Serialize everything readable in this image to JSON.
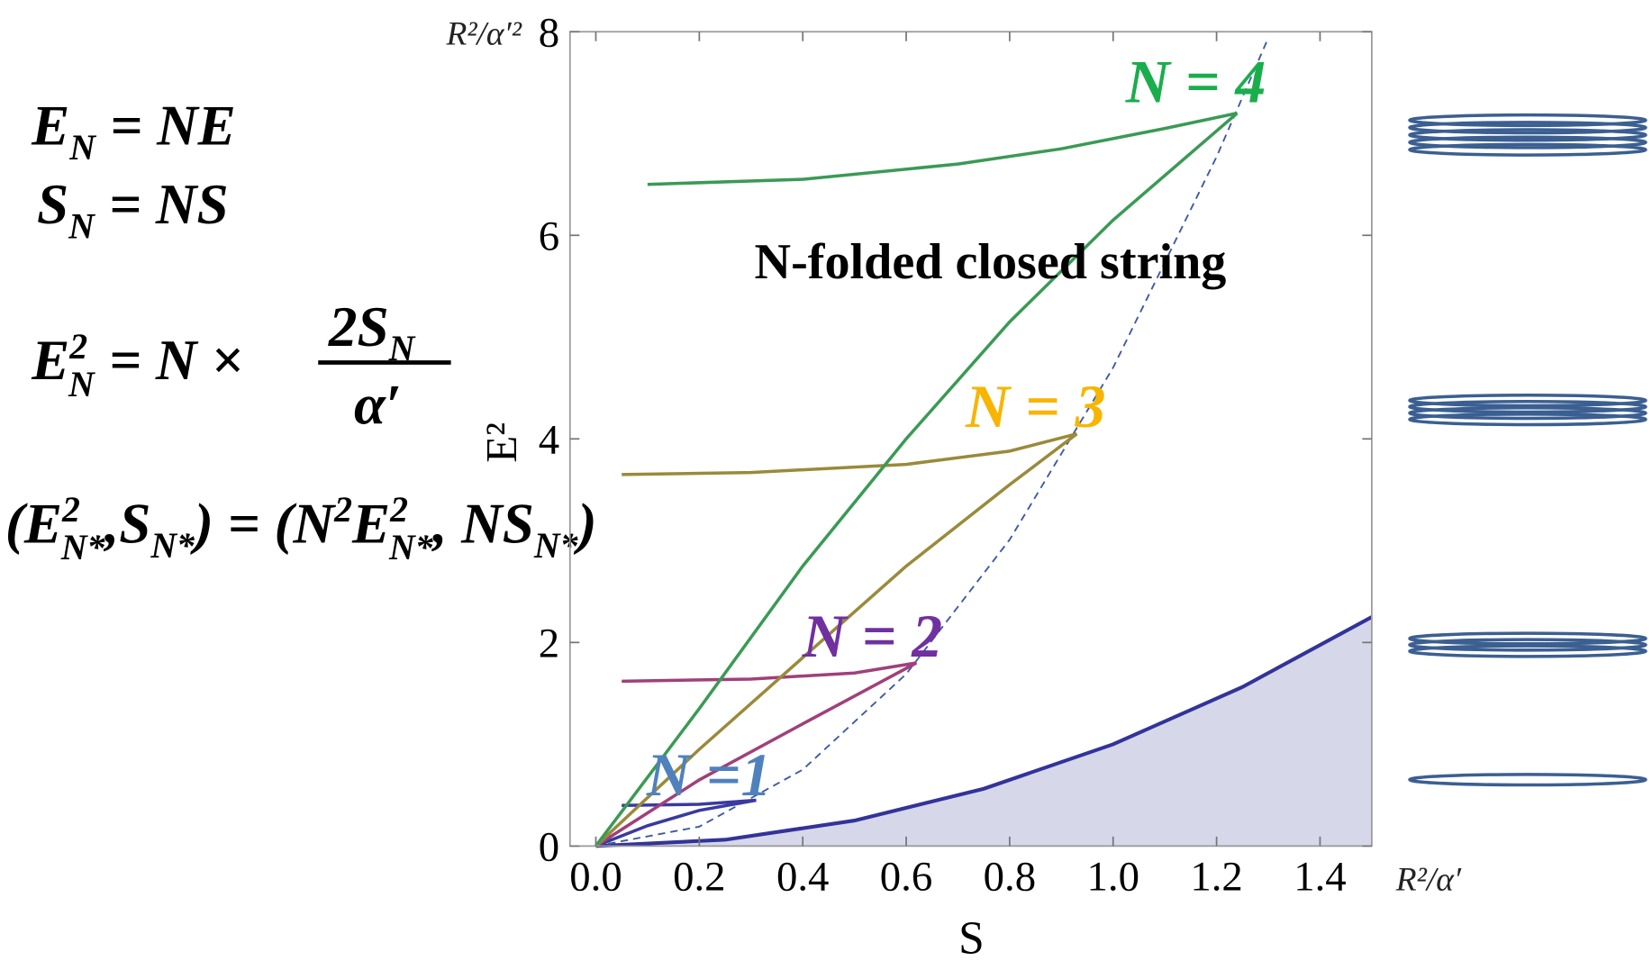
{
  "chart_data": {
    "type": "line",
    "xlim": [
      -0.05,
      1.5
    ],
    "ylim": [
      0,
      8
    ],
    "xticks": [
      {
        "value": 0,
        "label": "0.0"
      },
      0.2,
      0.4,
      0.6,
      0.8,
      {
        "value": 1,
        "label": "1.0"
      },
      1.2,
      1.4
    ],
    "yticks": [
      0,
      2,
      4,
      6,
      8
    ],
    "x_label": "S",
    "y_label": "E²",
    "x_unit": "R²/α′",
    "y_unit": "R²/α′²",
    "series": [
      {
        "style": "area",
        "color": "#33339a",
        "fill": "#d6d8ea",
        "x": [
          0,
          0.25,
          0.5,
          0.75,
          1.0,
          1.25,
          1.5
        ],
        "values": [
          0,
          0.0625,
          0.25,
          0.5625,
          1,
          1.5625,
          2.25
        ]
      },
      {
        "style": "dashed",
        "color": "#3c5aa0",
        "x": [
          0,
          0.2,
          0.4,
          0.6,
          0.8,
          1.0,
          1.2,
          1.3
        ],
        "values": [
          0,
          0.19,
          0.75,
          1.69,
          3.01,
          4.7,
          6.77,
          7.94
        ]
      },
      {
        "style": "solid",
        "color": "#3a3aa0",
        "x": [
          0.05,
          0.2,
          0.31
        ],
        "values": [
          0.4,
          0.41,
          0.45
        ]
      },
      {
        "style": "solid",
        "color": "#3a3aa0",
        "x": [
          0,
          0.1,
          0.2,
          0.31
        ],
        "values": [
          0,
          0.2,
          0.35,
          0.45
        ]
      },
      {
        "style": "solid",
        "color": "#a0407a",
        "x": [
          0.05,
          0.3,
          0.5,
          0.62
        ],
        "values": [
          1.62,
          1.64,
          1.7,
          1.8
        ]
      },
      {
        "style": "solid",
        "color": "#a0407a",
        "x": [
          0,
          0.2,
          0.4,
          0.62
        ],
        "values": [
          0,
          0.65,
          1.2,
          1.8
        ]
      },
      {
        "style": "solid",
        "color": "#9a8a3a",
        "x": [
          0.05,
          0.3,
          0.6,
          0.8,
          0.93
        ],
        "values": [
          3.65,
          3.67,
          3.75,
          3.88,
          4.05
        ]
      },
      {
        "style": "solid",
        "color": "#9a8a3a",
        "x": [
          0,
          0.2,
          0.4,
          0.6,
          0.8,
          0.93
        ],
        "values": [
          0,
          0.95,
          1.85,
          2.75,
          3.55,
          4.05
        ]
      },
      {
        "style": "solid",
        "color": "#3a9a55",
        "x": [
          0.1,
          0.4,
          0.7,
          0.9,
          1.1,
          1.24
        ],
        "values": [
          6.5,
          6.55,
          6.7,
          6.85,
          7.05,
          7.2
        ]
      },
      {
        "style": "solid",
        "color": "#3a9a55",
        "x": [
          0,
          0.2,
          0.4,
          0.6,
          0.8,
          1.0,
          1.24
        ],
        "values": [
          0,
          1.35,
          2.75,
          4.0,
          5.15,
          6.15,
          7.2
        ]
      }
    ],
    "annotations": [
      {
        "text": "N-folded closed string",
        "color": "#000000"
      },
      {
        "text": "N = 4",
        "color": "#1aad4c"
      },
      {
        "text": "N = 3",
        "color": "#f7b500"
      },
      {
        "text": "N = 2",
        "color": "#7030a0"
      },
      {
        "text": "N =1",
        "color": "#4f81bd"
      }
    ]
  },
  "equations": [
    [
      "E",
      "N",
      "= NE"
    ],
    [
      "S",
      "N",
      "= NS"
    ],
    [
      "E",
      "2",
      "N",
      "= N ×",
      "2S",
      "N",
      "α′"
    ],
    [
      "(E",
      "2",
      "N*",
      ",S",
      "N*",
      ") = (N",
      "2",
      "E",
      "2",
      "N*",
      ", NS",
      "N*",
      ")"
    ]
  ]
}
